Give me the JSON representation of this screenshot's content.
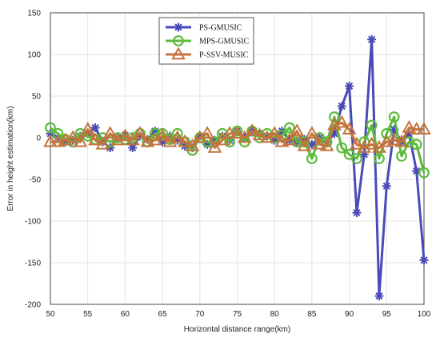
{
  "chart_data": {
    "type": "line",
    "title": "",
    "xlabel": "Horizontal distance range(km)",
    "ylabel": "Error in height estimation(km)",
    "xlim": [
      50,
      100
    ],
    "ylim": [
      -200,
      150
    ],
    "xticks": [
      50,
      55,
      60,
      65,
      70,
      75,
      80,
      85,
      90,
      95,
      100
    ],
    "yticks": [
      150,
      100,
      50,
      0,
      -50,
      -100,
      -150,
      -200
    ],
    "grid": true,
    "legend_position": "top-center",
    "series": [
      {
        "name": "PS-GMUSIC",
        "color": "#4a4ab8",
        "marker": "asterisk",
        "x": [
          50,
          51,
          52,
          53,
          54,
          55,
          56,
          57,
          58,
          59,
          60,
          61,
          62,
          63,
          64,
          65,
          66,
          67,
          68,
          69,
          70,
          71,
          72,
          73,
          74,
          75,
          76,
          77,
          78,
          79,
          80,
          81,
          82,
          83,
          84,
          85,
          86,
          87,
          88,
          89,
          90,
          91,
          92,
          93,
          94,
          95,
          96,
          97,
          98,
          99,
          100
        ],
        "y": [
          5,
          0,
          -5,
          -3,
          2,
          5,
          12,
          -5,
          -12,
          0,
          3,
          -12,
          2,
          -2,
          8,
          -5,
          2,
          -3,
          -10,
          -12,
          2,
          -8,
          -3,
          2,
          -3,
          8,
          0,
          8,
          5,
          2,
          -3,
          8,
          -3,
          -5,
          -2,
          -8,
          0,
          -5,
          5,
          38,
          62,
          -90,
          -20,
          118,
          -190,
          -58,
          10,
          -5,
          5,
          -40,
          -147
        ]
      },
      {
        "name": "MPS-GMUSIC",
        "color": "#5cbc3c",
        "marker": "circle",
        "x": [
          50,
          51,
          52,
          53,
          54,
          55,
          56,
          57,
          58,
          59,
          60,
          61,
          62,
          63,
          64,
          65,
          66,
          67,
          68,
          69,
          70,
          71,
          72,
          73,
          74,
          75,
          76,
          77,
          78,
          79,
          80,
          81,
          82,
          83,
          84,
          85,
          86,
          87,
          88,
          89,
          90,
          91,
          92,
          93,
          94,
          95,
          96,
          97,
          98,
          99,
          100
        ],
        "y": [
          12,
          5,
          -2,
          -5,
          5,
          2,
          -2,
          0,
          -5,
          0,
          -2,
          0,
          5,
          -5,
          5,
          5,
          -2,
          5,
          -5,
          -15,
          0,
          -5,
          -5,
          5,
          -5,
          8,
          -5,
          8,
          0,
          5,
          0,
          3,
          12,
          -5,
          -5,
          -25,
          0,
          -5,
          25,
          -12,
          -20,
          -25,
          -5,
          15,
          -25,
          5,
          25,
          -22,
          -5,
          -8,
          -42
        ]
      },
      {
        "name": "P-SSV-MUSIC",
        "color": "#c4733c",
        "marker": "triangle",
        "x": [
          50,
          51,
          52,
          53,
          54,
          55,
          56,
          57,
          58,
          59,
          60,
          61,
          62,
          63,
          64,
          65,
          66,
          67,
          68,
          69,
          70,
          71,
          72,
          73,
          74,
          75,
          76,
          77,
          78,
          79,
          80,
          81,
          82,
          83,
          84,
          85,
          86,
          87,
          88,
          89,
          90,
          91,
          92,
          93,
          94,
          95,
          96,
          97,
          98,
          99,
          100
        ],
        "y": [
          -5,
          -5,
          -3,
          0,
          -5,
          10,
          -3,
          -8,
          5,
          -3,
          2,
          -3,
          5,
          -5,
          -3,
          2,
          -5,
          0,
          -5,
          -10,
          0,
          5,
          -12,
          -3,
          5,
          5,
          0,
          8,
          3,
          0,
          5,
          -5,
          -3,
          8,
          -10,
          5,
          -8,
          -10,
          15,
          18,
          10,
          -8,
          -12,
          -8,
          -12,
          -5,
          -3,
          -5,
          12,
          10,
          10
        ]
      }
    ]
  }
}
